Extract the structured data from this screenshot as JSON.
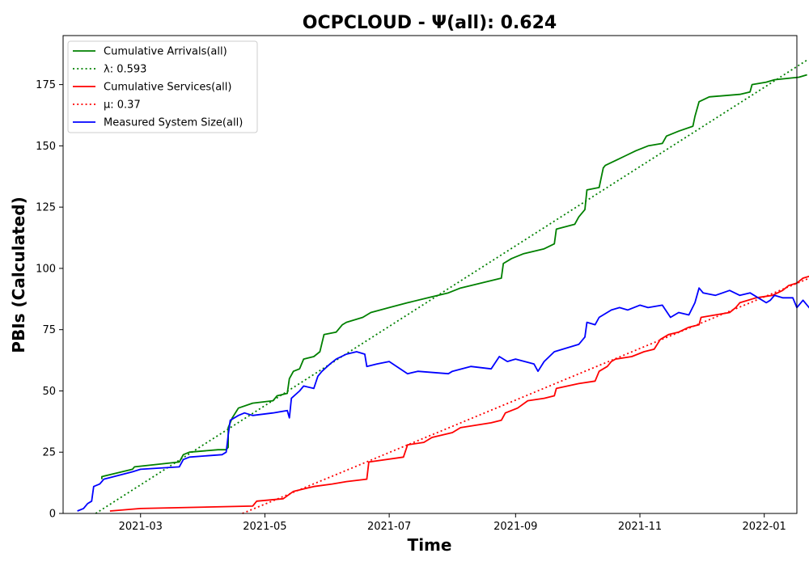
{
  "chart_data": {
    "type": "line",
    "title": "OCPCLOUD -  Ψ(all): 0.624",
    "xlabel": "Time",
    "ylabel": "PBIs (Calculated)",
    "xlim": [
      "2021-01-22",
      "2022-01-17"
    ],
    "ylim": [
      0,
      195
    ],
    "x_ticks": [
      "2021-03",
      "2021-05",
      "2021-07",
      "2021-09",
      "2021-11",
      "2022-01"
    ],
    "y_ticks": [
      0,
      25,
      50,
      75,
      100,
      125,
      150,
      175
    ],
    "grid": false,
    "legend_position": "top-left",
    "series": [
      {
        "name": "Cumulative Arrivals(all)",
        "color": "#008000",
        "style": "solid",
        "points": [
          [
            "2021-02-10",
            14
          ],
          [
            "2021-02-10",
            15
          ],
          [
            "2021-02-25",
            18
          ],
          [
            "2021-02-26",
            19
          ],
          [
            "2021-03-20",
            21
          ],
          [
            "2021-03-22",
            24
          ],
          [
            "2021-03-25",
            25
          ],
          [
            "2021-04-08",
            26
          ],
          [
            "2021-04-12",
            26
          ],
          [
            "2021-04-13",
            27
          ],
          [
            "2021-04-13",
            35
          ],
          [
            "2021-04-15",
            39
          ],
          [
            "2021-04-18",
            43
          ],
          [
            "2021-04-25",
            45
          ],
          [
            "2021-05-05",
            46
          ],
          [
            "2021-05-07",
            48
          ],
          [
            "2021-05-12",
            49
          ],
          [
            "2021-05-13",
            55
          ],
          [
            "2021-05-15",
            58
          ],
          [
            "2021-05-18",
            59
          ],
          [
            "2021-05-20",
            63
          ],
          [
            "2021-05-25",
            64
          ],
          [
            "2021-05-28",
            66
          ],
          [
            "2021-05-30",
            73
          ],
          [
            "2021-06-05",
            74
          ],
          [
            "2021-06-08",
            77
          ],
          [
            "2021-06-10",
            78
          ],
          [
            "2021-06-18",
            80
          ],
          [
            "2021-06-22",
            82
          ],
          [
            "2021-07-01",
            84
          ],
          [
            "2021-07-10",
            86
          ],
          [
            "2021-07-20",
            88
          ],
          [
            "2021-07-30",
            90
          ],
          [
            "2021-08-05",
            92
          ],
          [
            "2021-08-15",
            94
          ],
          [
            "2021-08-25",
            96
          ],
          [
            "2021-08-26",
            102
          ],
          [
            "2021-08-30",
            104
          ],
          [
            "2021-09-05",
            106
          ],
          [
            "2021-09-15",
            108
          ],
          [
            "2021-09-20",
            110
          ],
          [
            "2021-09-21",
            116
          ],
          [
            "2021-09-30",
            118
          ],
          [
            "2021-10-02",
            121
          ],
          [
            "2021-10-05",
            124
          ],
          [
            "2021-10-06",
            132
          ],
          [
            "2021-10-12",
            133
          ],
          [
            "2021-10-14",
            141
          ],
          [
            "2021-10-15",
            142
          ],
          [
            "2021-10-20",
            144
          ],
          [
            "2021-10-25",
            146
          ],
          [
            "2021-10-30",
            148
          ],
          [
            "2021-11-05",
            150
          ],
          [
            "2021-11-12",
            151
          ],
          [
            "2021-11-14",
            154
          ],
          [
            "2021-11-20",
            156
          ],
          [
            "2021-11-27",
            158
          ],
          [
            "2021-11-28",
            162
          ],
          [
            "2021-11-30",
            168
          ],
          [
            "2021-12-05",
            170
          ],
          [
            "2021-12-20",
            171
          ],
          [
            "2021-12-25",
            172
          ],
          [
            "2021-12-26",
            175
          ],
          [
            "2022-01-02",
            176
          ],
          [
            "2022-01-06",
            177
          ],
          [
            "2022-01-18",
            178
          ],
          [
            "2022-01-22",
            179
          ]
        ]
      },
      {
        "name": "λ: 0.593",
        "color": "#008000",
        "style": "dotted",
        "points": [
          [
            "2021-02-07",
            0
          ],
          [
            "2022-01-22",
            185
          ]
        ]
      },
      {
        "name": "Cumulative Services(all)",
        "color": "#ff0000",
        "style": "solid",
        "points": [
          [
            "2021-02-14",
            1
          ],
          [
            "2021-03-01",
            2
          ],
          [
            "2021-04-25",
            3
          ],
          [
            "2021-04-27",
            5
          ],
          [
            "2021-05-10",
            6
          ],
          [
            "2021-05-15",
            9
          ],
          [
            "2021-05-25",
            11
          ],
          [
            "2021-06-03",
            12
          ],
          [
            "2021-06-10",
            13
          ],
          [
            "2021-06-20",
            14
          ],
          [
            "2021-06-21",
            21
          ],
          [
            "2021-07-08",
            23
          ],
          [
            "2021-07-10",
            28
          ],
          [
            "2021-07-18",
            29
          ],
          [
            "2021-07-22",
            31
          ],
          [
            "2021-08-01",
            33
          ],
          [
            "2021-08-05",
            35
          ],
          [
            "2021-08-20",
            37
          ],
          [
            "2021-08-25",
            38
          ],
          [
            "2021-08-27",
            41
          ],
          [
            "2021-09-02",
            43
          ],
          [
            "2021-09-07",
            46
          ],
          [
            "2021-09-15",
            47
          ],
          [
            "2021-09-20",
            48
          ],
          [
            "2021-09-21",
            51
          ],
          [
            "2021-10-02",
            53
          ],
          [
            "2021-10-10",
            54
          ],
          [
            "2021-10-12",
            58
          ],
          [
            "2021-10-16",
            60
          ],
          [
            "2021-10-18",
            62
          ],
          [
            "2021-10-20",
            63
          ],
          [
            "2021-10-28",
            64
          ],
          [
            "2021-11-03",
            66
          ],
          [
            "2021-11-08",
            67
          ],
          [
            "2021-11-11",
            71
          ],
          [
            "2021-11-15",
            73
          ],
          [
            "2021-11-20",
            74
          ],
          [
            "2021-11-25",
            76
          ],
          [
            "2021-11-30",
            77
          ],
          [
            "2021-12-01",
            80
          ],
          [
            "2021-12-08",
            81
          ],
          [
            "2021-12-15",
            82
          ],
          [
            "2021-12-18",
            84
          ],
          [
            "2021-12-20",
            86
          ],
          [
            "2021-12-28",
            88
          ],
          [
            "2022-01-05",
            89
          ],
          [
            "2022-01-10",
            91
          ],
          [
            "2022-01-13",
            93
          ],
          [
            "2022-01-17",
            94
          ],
          [
            "2022-01-20",
            96
          ],
          [
            "2022-01-24",
            97
          ],
          [
            "2022-01-26",
            97
          ],
          [
            "2022-01-27",
            98
          ]
        ]
      },
      {
        "name": "μ: 0.37",
        "color": "#ff0000",
        "style": "dotted",
        "points": [
          [
            "2021-04-20",
            0
          ],
          [
            "2022-01-26",
            97
          ]
        ]
      },
      {
        "name": "Measured System Size(all)",
        "color": "#0000ff",
        "style": "solid",
        "points": [
          [
            "2021-01-29",
            1
          ],
          [
            "2021-02-01",
            2
          ],
          [
            "2021-02-03",
            4
          ],
          [
            "2021-02-05",
            5
          ],
          [
            "2021-02-06",
            11
          ],
          [
            "2021-02-09",
            12
          ],
          [
            "2021-02-11",
            14
          ],
          [
            "2021-02-25",
            17
          ],
          [
            "2021-03-01",
            18
          ],
          [
            "2021-03-20",
            19
          ],
          [
            "2021-03-22",
            22
          ],
          [
            "2021-03-25",
            23
          ],
          [
            "2021-04-10",
            24
          ],
          [
            "2021-04-12",
            25
          ],
          [
            "2021-04-13",
            32
          ],
          [
            "2021-04-14",
            38
          ],
          [
            "2021-04-18",
            40
          ],
          [
            "2021-04-21",
            41
          ],
          [
            "2021-04-25",
            40
          ],
          [
            "2021-05-05",
            41
          ],
          [
            "2021-05-12",
            42
          ],
          [
            "2021-05-13",
            39
          ],
          [
            "2021-05-14",
            47
          ],
          [
            "2021-05-18",
            50
          ],
          [
            "2021-05-20",
            52
          ],
          [
            "2021-05-25",
            51
          ],
          [
            "2021-05-27",
            56
          ],
          [
            "2021-05-29",
            58
          ],
          [
            "2021-06-02",
            61
          ],
          [
            "2021-06-05",
            63
          ],
          [
            "2021-06-10",
            65
          ],
          [
            "2021-06-15",
            66
          ],
          [
            "2021-06-19",
            65
          ],
          [
            "2021-06-20",
            60
          ],
          [
            "2021-06-25",
            61
          ],
          [
            "2021-07-01",
            62
          ],
          [
            "2021-07-10",
            57
          ],
          [
            "2021-07-15",
            58
          ],
          [
            "2021-07-30",
            57
          ],
          [
            "2021-08-01",
            58
          ],
          [
            "2021-08-10",
            60
          ],
          [
            "2021-08-20",
            59
          ],
          [
            "2021-08-24",
            64
          ],
          [
            "2021-08-28",
            62
          ],
          [
            "2021-09-01",
            63
          ],
          [
            "2021-09-10",
            61
          ],
          [
            "2021-09-12",
            58
          ],
          [
            "2021-09-15",
            62
          ],
          [
            "2021-09-20",
            66
          ],
          [
            "2021-10-02",
            69
          ],
          [
            "2021-10-05",
            72
          ],
          [
            "2021-10-06",
            78
          ],
          [
            "2021-10-10",
            77
          ],
          [
            "2021-10-12",
            80
          ],
          [
            "2021-10-18",
            83
          ],
          [
            "2021-10-22",
            84
          ],
          [
            "2021-10-26",
            83
          ],
          [
            "2021-11-01",
            85
          ],
          [
            "2021-11-05",
            84
          ],
          [
            "2021-11-12",
            85
          ],
          [
            "2021-11-16",
            80
          ],
          [
            "2021-11-20",
            82
          ],
          [
            "2021-11-25",
            81
          ],
          [
            "2021-11-28",
            86
          ],
          [
            "2021-11-30",
            92
          ],
          [
            "2021-12-02",
            90
          ],
          [
            "2021-12-08",
            89
          ],
          [
            "2021-12-15",
            91
          ],
          [
            "2021-12-20",
            89
          ],
          [
            "2021-12-25",
            90
          ],
          [
            "2022-01-02",
            86
          ],
          [
            "2022-01-04",
            87
          ],
          [
            "2022-01-06",
            89
          ],
          [
            "2022-01-10",
            88
          ],
          [
            "2022-01-15",
            88
          ],
          [
            "2022-01-17",
            84
          ],
          [
            "2022-01-20",
            87
          ],
          [
            "2022-01-24",
            83
          ],
          [
            "2022-01-26",
            82
          ],
          [
            "2022-01-27",
            81
          ]
        ]
      }
    ]
  }
}
